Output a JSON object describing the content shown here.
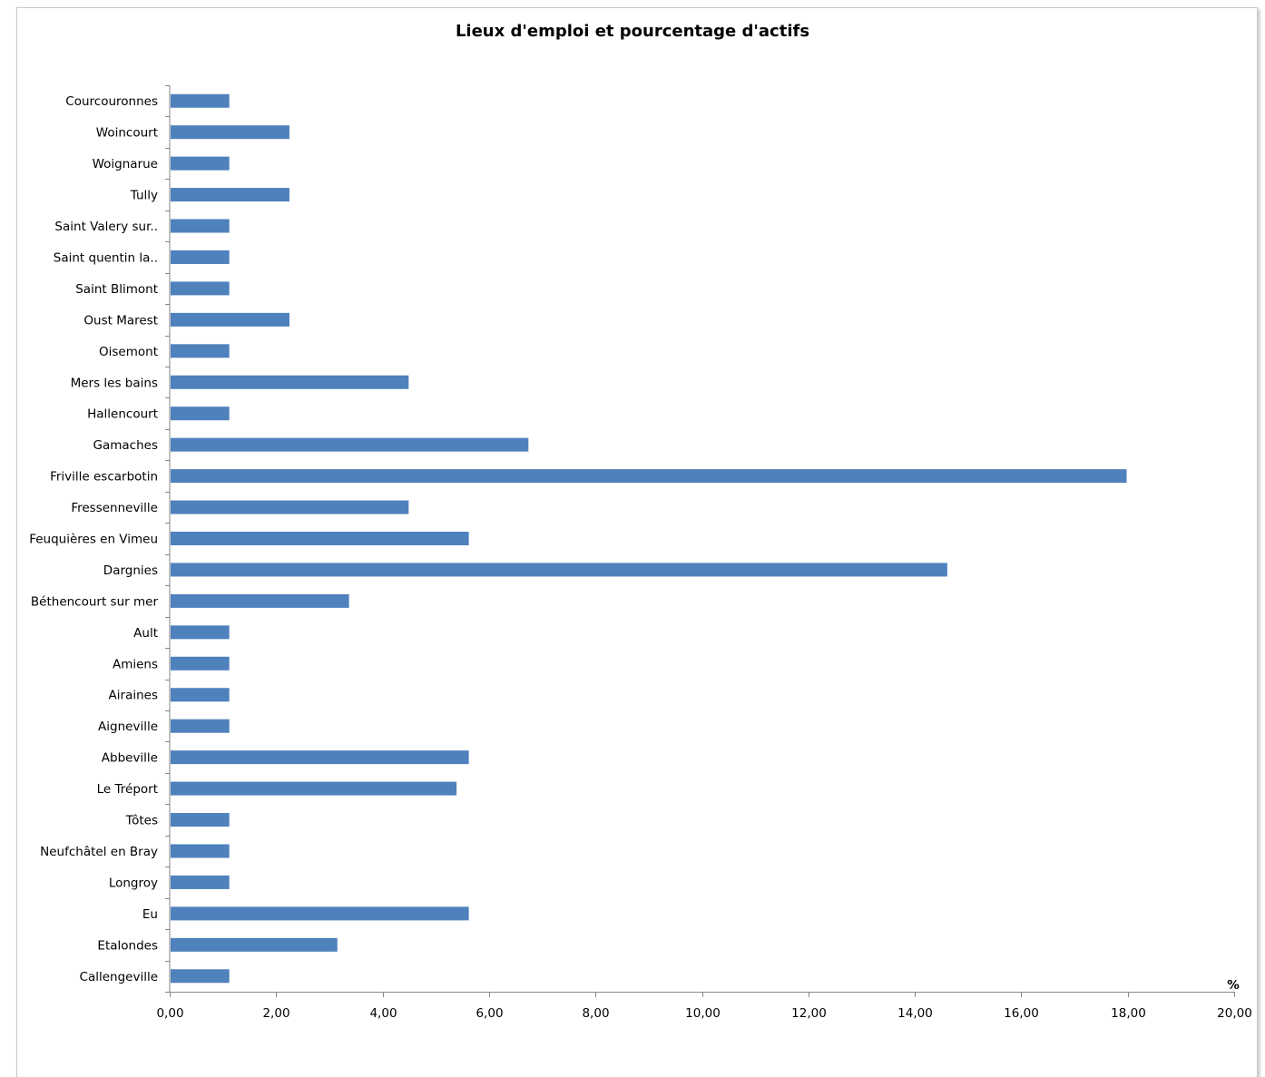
{
  "chart_data": {
    "type": "bar",
    "orientation": "horizontal",
    "title": "Lieux d'emploi et pourcentage d'actifs",
    "xlabel": "%",
    "ylabel": "",
    "xlim": [
      0,
      20
    ],
    "x_ticks": [
      "0,00",
      "2,00",
      "4,00",
      "6,00",
      "8,00",
      "10,00",
      "12,00",
      "14,00",
      "16,00",
      "18,00",
      "20,00"
    ],
    "grid": false,
    "legend": "none",
    "bar_color": "#4f81bd",
    "categories": [
      "Courcouronnes",
      "Woincourt",
      "Woignarue",
      "Tully",
      "Saint Valery sur..",
      "Saint quentin la..",
      "Saint Blimont",
      "Oust Marest",
      "Oisemont",
      "Mers les bains",
      "Hallencourt",
      "Gamaches",
      "Friville escarbotin",
      "Fressenneville",
      "Feuquières en Vimeu",
      "Dargnies",
      "Béthencourt sur mer",
      "Ault",
      "Amiens",
      "Airaines",
      "Aigneville",
      "Abbeville",
      "Le Tréport",
      "Tôtes",
      "Neufchâtel en Bray",
      "Longroy",
      "Eu",
      "Etalondes",
      "Callengeville"
    ],
    "values": [
      1.12,
      2.25,
      1.12,
      2.25,
      1.12,
      1.12,
      1.12,
      2.25,
      1.12,
      4.49,
      1.12,
      6.74,
      17.98,
      4.49,
      5.62,
      14.61,
      3.37,
      1.12,
      1.12,
      1.12,
      1.12,
      5.62,
      5.39,
      1.12,
      1.12,
      1.12,
      5.62,
      3.15,
      1.12
    ]
  }
}
